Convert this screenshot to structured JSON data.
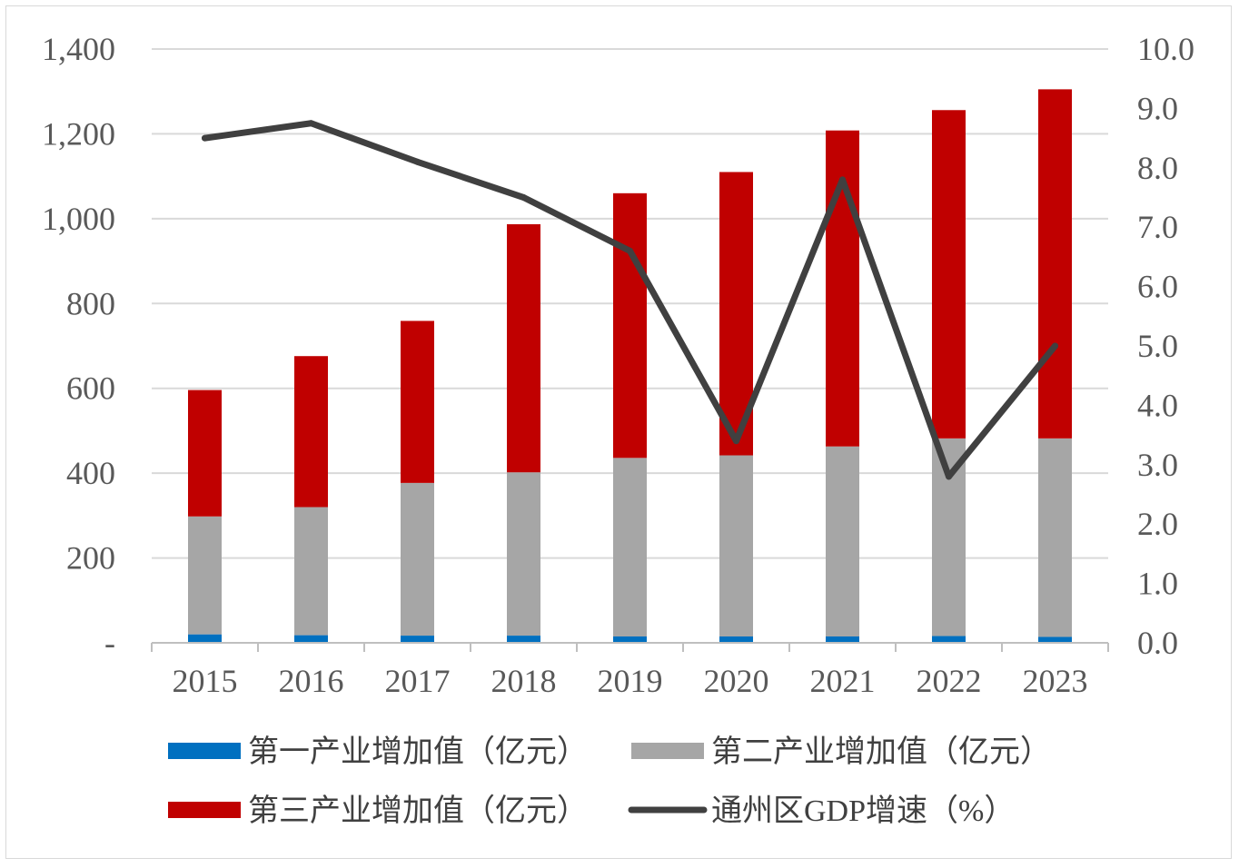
{
  "chart_data": {
    "type": "bar",
    "stacked": true,
    "categories": [
      "2015",
      "2016",
      "2017",
      "2018",
      "2019",
      "2020",
      "2021",
      "2022",
      "2023"
    ],
    "series": [
      {
        "name": "第一产业增加值（亿元）",
        "kind": "bar",
        "axis": "left",
        "color": "#0070c0",
        "values": [
          20,
          18,
          17,
          17,
          15,
          15,
          15,
          16,
          14
        ]
      },
      {
        "name": "第二产业增加值（亿元）",
        "kind": "bar",
        "axis": "left",
        "color": "#a6a6a6",
        "values": [
          278,
          302,
          360,
          385,
          421,
          427,
          448,
          466,
          468
        ]
      },
      {
        "name": "第三产业增加值（亿元）",
        "kind": "bar",
        "axis": "left",
        "color": "#c00000",
        "values": [
          298,
          356,
          382,
          585,
          624,
          668,
          745,
          774,
          823
        ]
      },
      {
        "name": "通州区GDP增速（%）",
        "kind": "line",
        "axis": "right",
        "color": "#404040",
        "values": [
          8.5,
          8.75,
          8.1,
          7.5,
          6.6,
          3.4,
          7.8,
          2.8,
          5.0
        ]
      }
    ],
    "left_axis": {
      "ylim": [
        0,
        1400
      ],
      "ticks": [
        "-",
        "200",
        "400",
        "600",
        "800",
        "1,000",
        "1,200",
        "1,400"
      ]
    },
    "right_axis": {
      "ylim": [
        0,
        10
      ],
      "ticks": [
        "0.0",
        "1.0",
        "2.0",
        "3.0",
        "4.0",
        "5.0",
        "6.0",
        "7.0",
        "8.0",
        "9.0",
        "10.0"
      ]
    },
    "grid": true,
    "legend_position": "bottom"
  }
}
